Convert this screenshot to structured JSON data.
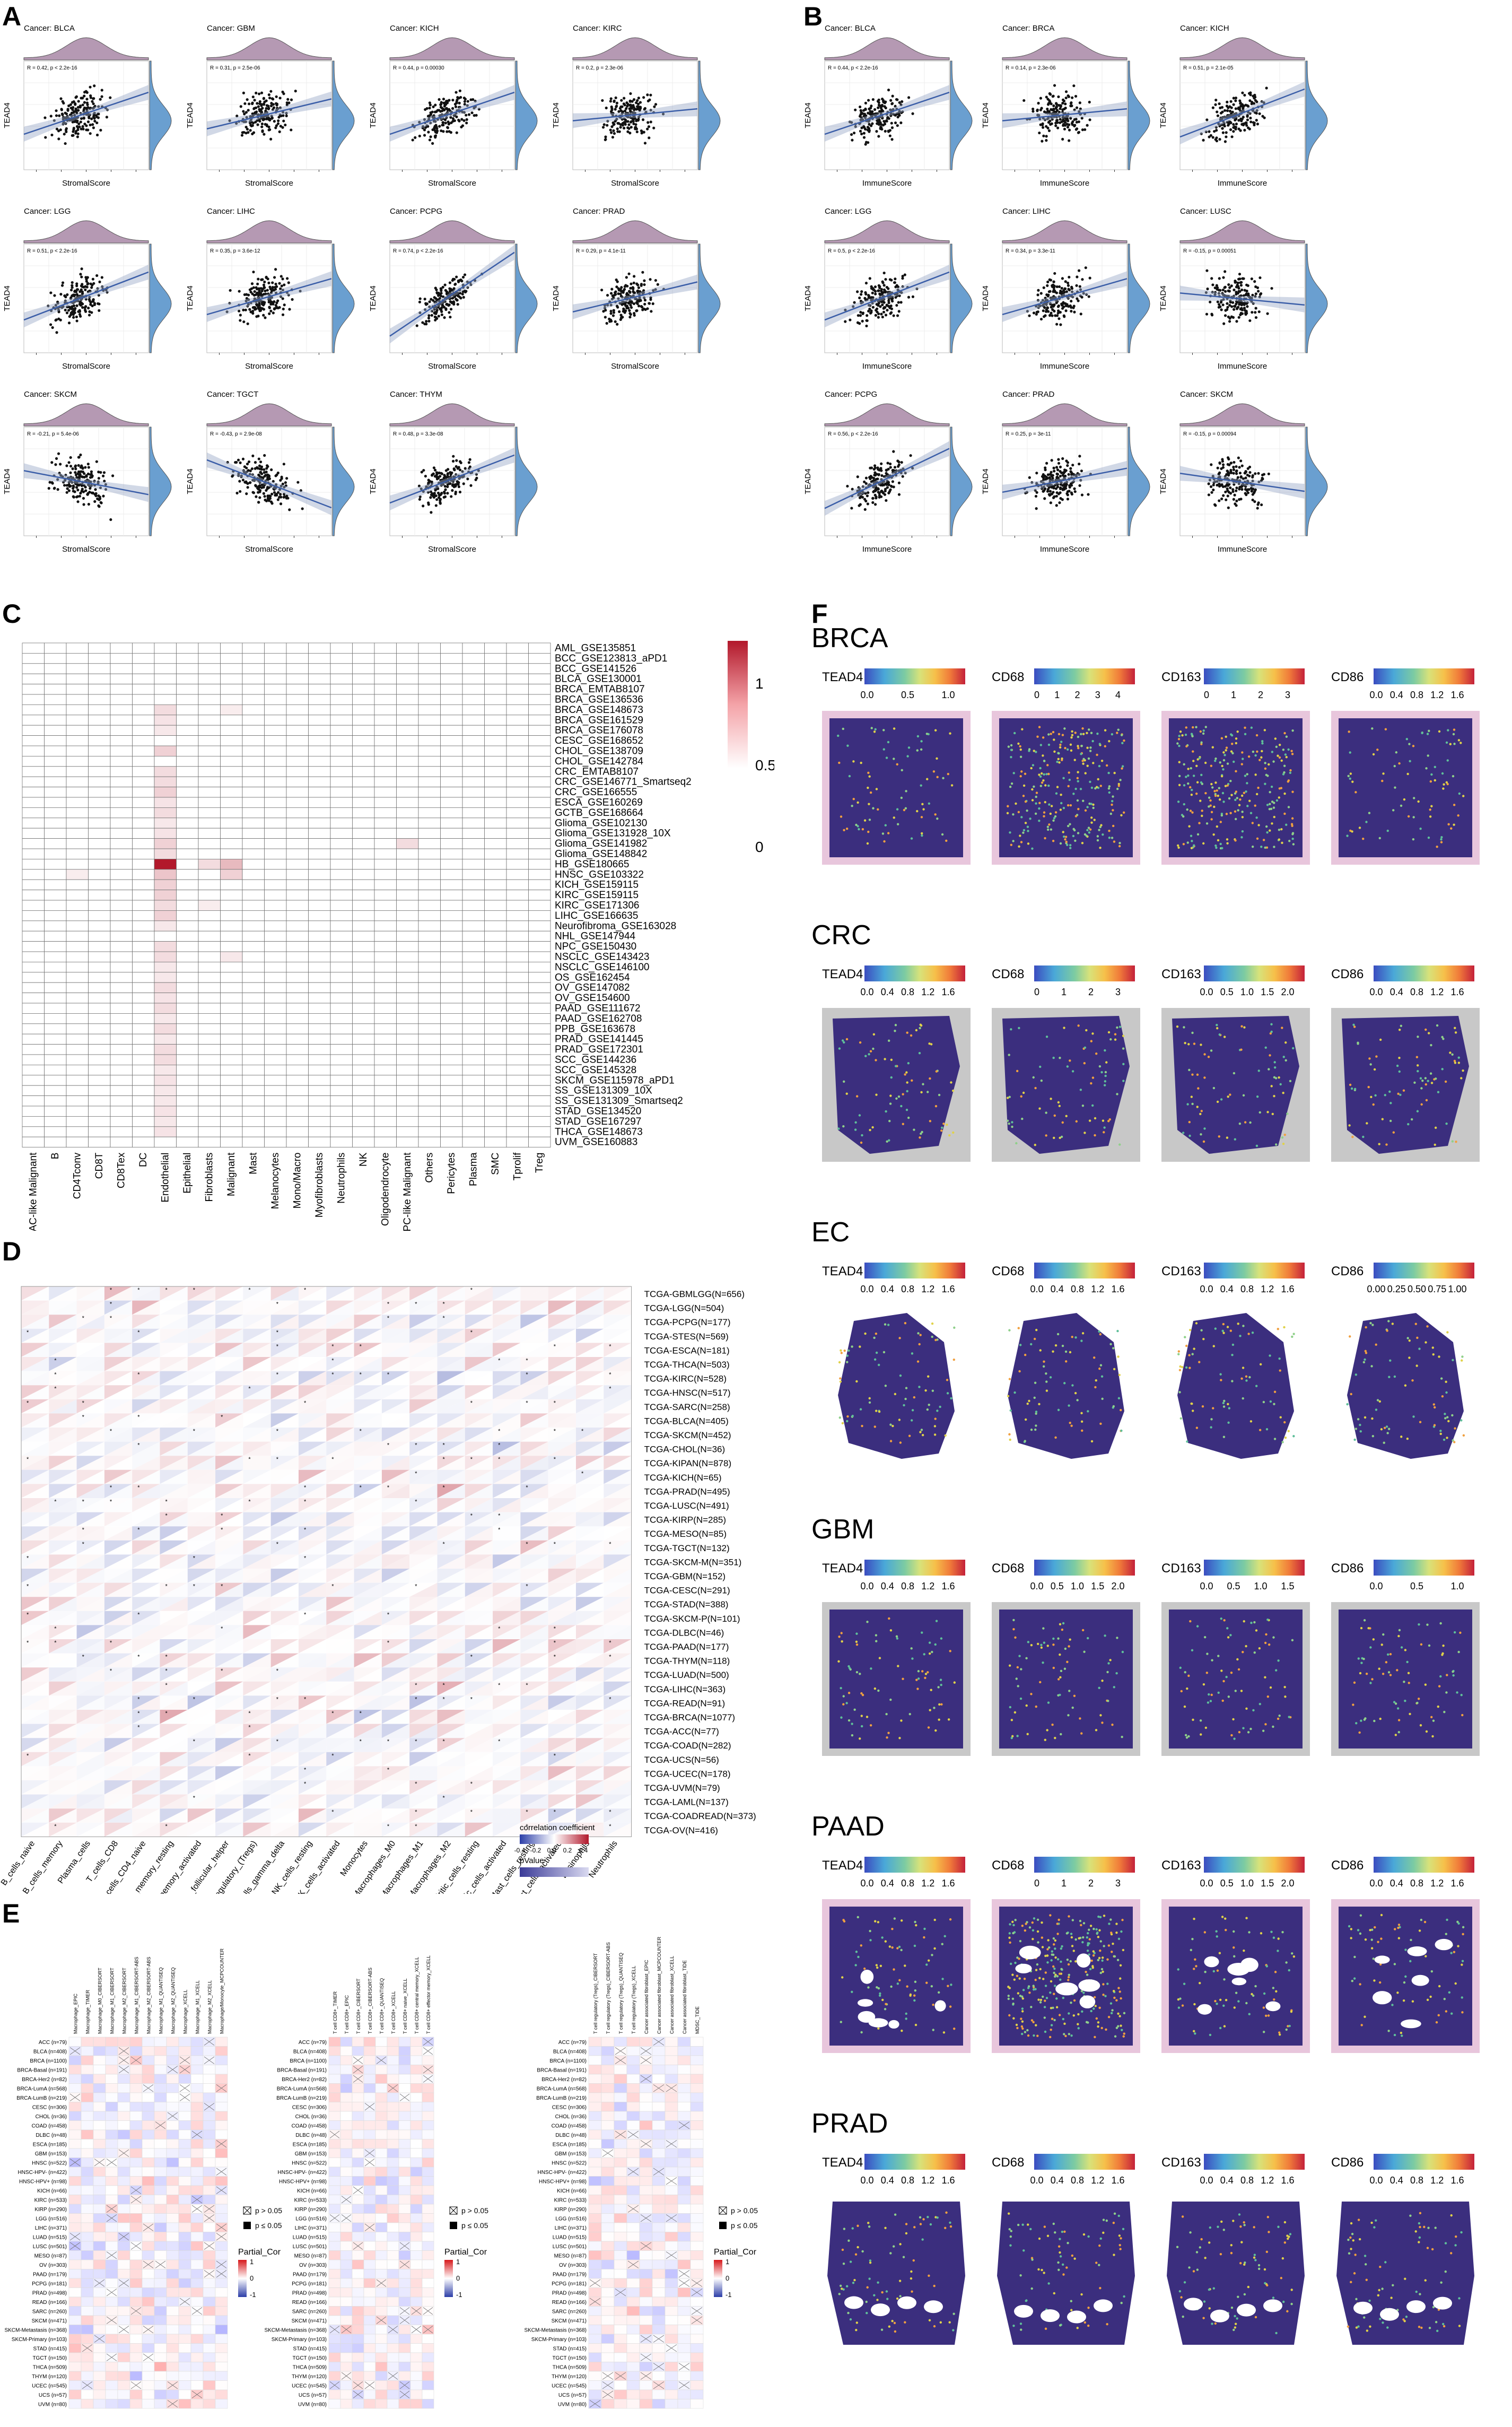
{
  "panels": {
    "A": {
      "letter": "A",
      "xlabel": "StromalScore",
      "ylabel": "TEAD4",
      "plots": [
        {
          "cancer": "Cancer: BLCA",
          "stat": "R = 0.42, p < 2.2e-16",
          "slope": 0.35
        },
        {
          "cancer": "Cancer: GBM",
          "stat": "R = 0.31, p = 2.5e-06",
          "slope": 0.25
        },
        {
          "cancer": "Cancer: KICH",
          "stat": "R = 0.44, p = 0.00030",
          "slope": 0.35
        },
        {
          "cancer": "Cancer: KIRC",
          "stat": "R = 0.2, p = 2.3e-06",
          "slope": 0.1
        },
        {
          "cancer": "Cancer: LGG",
          "stat": "R = 0.51, p < 2.2e-16",
          "slope": 0.4
        },
        {
          "cancer": "Cancer: LIHC",
          "stat": "R = 0.35, p = 3.6e-12",
          "slope": 0.3
        },
        {
          "cancer": "Cancer: PCPG",
          "stat": "R = 0.74, p < 2.2e-16",
          "slope": 0.7
        },
        {
          "cancer": "Cancer: PRAD",
          "stat": "R = 0.29, p = 4.1e-11",
          "slope": 0.25
        },
        {
          "cancer": "Cancer: SKCM",
          "stat": "R = -0.21, p = 5.4e-06",
          "slope": -0.2
        },
        {
          "cancer": "Cancer: TGCT",
          "stat": "R = -0.43, p = 2.9e-08",
          "slope": -0.4
        },
        {
          "cancer": "Cancer: THYM",
          "stat": "R = 0.48, p = 3.3e-08",
          "slope": 0.4
        }
      ]
    },
    "B": {
      "letter": "B",
      "xlabel": "ImmuneScore",
      "ylabel": "TEAD4",
      "plots": [
        {
          "cancer": "Cancer: BLCA",
          "stat": "R = 0.44, p < 2.2e-16",
          "slope": 0.35
        },
        {
          "cancer": "Cancer: BRCA",
          "stat": "R = 0.14, p = 2.3e-06",
          "slope": 0.1
        },
        {
          "cancer": "Cancer: KICH",
          "stat": "R = 0.51, p = 2.1e-05",
          "slope": 0.4
        },
        {
          "cancer": "Cancer: LGG",
          "stat": "R = 0.5, p < 2.2e-16",
          "slope": 0.4
        },
        {
          "cancer": "Cancer: LIHC",
          "stat": "R = 0.34, p = 3.3e-11",
          "slope": 0.3
        },
        {
          "cancer": "Cancer: LUSC",
          "stat": "R = -0.15, p = 0.00051",
          "slope": -0.1
        },
        {
          "cancer": "Cancer: PCPG",
          "stat": "R = 0.56, p < 2.2e-16",
          "slope": 0.5
        },
        {
          "cancer": "Cancer: PRAD",
          "stat": "R = 0.25, p = 3e-11",
          "slope": 0.2
        },
        {
          "cancer": "Cancer: SKCM",
          "stat": "R = -0.15, p = 0.00094",
          "slope": -0.15
        }
      ]
    },
    "C": {
      "letter": "C",
      "datasets": [
        "AML_GSE135851",
        "BCC_GSE123813_aPD1",
        "BCC_GSE141526",
        "BLCA_GSE130001",
        "BRCA_EMTAB8107",
        "BRCA_GSE136536",
        "BRCA_GSE148673",
        "BRCA_GSE161529",
        "BRCA_GSE176078",
        "CESC_GSE168652",
        "CHOL_GSE138709",
        "CHOL_GSE142784",
        "CRC_EMTAB8107",
        "CRC_GSE146771_Smartseq2",
        "CRC_GSE166555",
        "ESCA_GSE160269",
        "GCTB_GSE168664",
        "Glioma_GSE102130",
        "Glioma_GSE131928_10X",
        "Glioma_GSE141982",
        "Glioma_GSE148842",
        "HB_GSE180665",
        "HNSC_GSE103322",
        "KICH_GSE159115",
        "KIRC_GSE159115",
        "KIRC_GSE171306",
        "LIHC_GSE166635",
        "Neurofibroma_GSE163028",
        "NHL_GSE147944",
        "NPC_GSE150430",
        "NSCLC_GSE143423",
        "NSCLC_GSE146100",
        "OS_GSE162454",
        "OV_GSE147082",
        "OV_GSE154600",
        "PAAD_GSE111672",
        "PAAD_GSE162708",
        "PPB_GSE163678",
        "PRAD_GSE141445",
        "PRAD_GSE172301",
        "SCC_GSE144236",
        "SCC_GSE145328",
        "SKCM_GSE115978_aPD1",
        "SS_GSE131309_10X",
        "SS_GSE131309_Smartseq2",
        "STAD_GSE134520",
        "STAD_GSE167297",
        "THCA_GSE148673",
        "UVM_GSE160883"
      ],
      "celltypes": [
        "AC-like Malignant",
        "B",
        "CD4Tconv",
        "CD8T",
        "CD8Tex",
        "DC",
        "Endothelial",
        "Epithelial",
        "Fibroblasts",
        "Malignant",
        "Mast",
        "Melanocytes",
        "Mono/Macro",
        "Myofibroblasts",
        "Neutrophils",
        "NK",
        "Oligodendrocyte",
        "OPC-like Malignant",
        "Others",
        "Pericytes",
        "Plasma",
        "SMC",
        "Tprolif",
        "Treg"
      ],
      "legend_ticks": [
        "1",
        "0.5",
        "0"
      ],
      "high_cells": [
        [
          21,
          6,
          1.0
        ],
        [
          21,
          9,
          0.3
        ],
        [
          22,
          6,
          0.25
        ],
        [
          6,
          6,
          0.15
        ],
        [
          7,
          6,
          0.12
        ],
        [
          8,
          6,
          0.1
        ],
        [
          10,
          6,
          0.2
        ],
        [
          12,
          6,
          0.15
        ],
        [
          13,
          6,
          0.15
        ],
        [
          14,
          6,
          0.2
        ],
        [
          15,
          6,
          0.12
        ],
        [
          16,
          6,
          0.15
        ],
        [
          17,
          6,
          0.1
        ],
        [
          18,
          6,
          0.12
        ],
        [
          19,
          6,
          0.2
        ],
        [
          20,
          6,
          0.15
        ],
        [
          23,
          6,
          0.2
        ],
        [
          24,
          6,
          0.2
        ],
        [
          25,
          6,
          0.15
        ],
        [
          26,
          6,
          0.2
        ],
        [
          27,
          6,
          0.1
        ],
        [
          29,
          6,
          0.15
        ],
        [
          30,
          6,
          0.15
        ],
        [
          31,
          6,
          0.1
        ],
        [
          32,
          6,
          0.1
        ],
        [
          33,
          6,
          0.15
        ],
        [
          34,
          6,
          0.12
        ],
        [
          35,
          6,
          0.15
        ],
        [
          36,
          6,
          0.1
        ],
        [
          37,
          6,
          0.15
        ],
        [
          38,
          6,
          0.1
        ],
        [
          39,
          6,
          0.15
        ],
        [
          40,
          6,
          0.15
        ],
        [
          41,
          6,
          0.1
        ],
        [
          42,
          6,
          0.12
        ],
        [
          43,
          6,
          0.1
        ],
        [
          44,
          6,
          0.1
        ],
        [
          45,
          6,
          0.12
        ],
        [
          46,
          6,
          0.1
        ],
        [
          47,
          6,
          0.12
        ],
        [
          21,
          8,
          0.15
        ],
        [
          22,
          9,
          0.2
        ],
        [
          19,
          17,
          0.15
        ],
        [
          22,
          2,
          0.08
        ],
        [
          25,
          8,
          0.08
        ],
        [
          6,
          9,
          0.08
        ],
        [
          30,
          9,
          0.1
        ]
      ]
    },
    "D": {
      "letter": "D",
      "rows": [
        "TCGA-GBMLGG(N=656)",
        "TCGA-LGG(N=504)",
        "TCGA-PCPG(N=177)",
        "TCGA-STES(N=569)",
        "TCGA-ESCA(N=181)",
        "TCGA-THCA(N=503)",
        "TCGA-KIRC(N=528)",
        "TCGA-HNSC(N=517)",
        "TCGA-SARC(N=258)",
        "TCGA-BLCA(N=405)",
        "TCGA-SKCM(N=452)",
        "TCGA-CHOL(N=36)",
        "TCGA-KIPAN(N=878)",
        "TCGA-KICH(N=65)",
        "TCGA-PRAD(N=495)",
        "TCGA-LUSC(N=491)",
        "TCGA-KIRP(N=285)",
        "TCGA-MESO(N=85)",
        "TCGA-TGCT(N=132)",
        "TCGA-SKCM-M(N=351)",
        "TCGA-GBM(N=152)",
        "TCGA-CESC(N=291)",
        "TCGA-STAD(N=388)",
        "TCGA-SKCM-P(N=101)",
        "TCGA-DLBC(N=46)",
        "TCGA-PAAD(N=177)",
        "TCGA-THYM(N=118)",
        "TCGA-LUAD(N=500)",
        "TCGA-LIHC(N=363)",
        "TCGA-READ(N=91)",
        "TCGA-BRCA(N=1077)",
        "TCGA-ACC(N=77)",
        "TCGA-COAD(N=282)",
        "TCGA-UCS(N=56)",
        "TCGA-UCEC(N=178)",
        "TCGA-UVM(N=79)",
        "TCGA-LAML(N=137)",
        "TCGA-COADREAD(N=373)",
        "TCGA-OV(N=416)"
      ],
      "cols": [
        "B_cells_naive",
        "B_cells_memory",
        "Plasma_cells",
        "T_cells_CD8",
        "T_cells_CD4_naive",
        "T_cells_CD4_memory_resting",
        "T_cells_CD4_memory_activated",
        "T_cells_follicular_helper",
        "T_cells_regulatory_(Tregs)",
        "T_cells_gamma_delta",
        "NK_cells_resting",
        "NK_cells_activated",
        "Monocytes",
        "Macrophages_M0",
        "Macrophages_M1",
        "Macrophages_M2",
        "Dendritic_cells_resting",
        "Dendritic_cells_activated",
        "Mast_cells_resting",
        "Mast_cells_activated",
        "Eosinophils",
        "Neutrophils"
      ],
      "legend_title": "correlation coefficient",
      "legend_ticks": [
        "-0.4",
        "-0.2",
        "0.0",
        "0.2",
        "0.4"
      ],
      "legend_p": "pValue"
    },
    "E": {
      "letter": "E",
      "rows": [
        "ACC (n=79)",
        "BLCA (n=408)",
        "BRCA (n=1100)",
        "BRCA-Basal (n=191)",
        "BRCA-Her2 (n=82)",
        "BRCA-LumA (n=568)",
        "BRCA-LumB (n=219)",
        "CESC (n=306)",
        "CHOL (n=36)",
        "COAD (n=458)",
        "DLBC (n=48)",
        "ESCA (n=185)",
        "GBM (n=153)",
        "HNSC (n=522)",
        "HNSC-HPV- (n=422)",
        "HNSC-HPV+ (n=98)",
        "KICH (n=66)",
        "KIRC (n=533)",
        "KIRP (n=290)",
        "LGG (n=516)",
        "LIHC (n=371)",
        "LUAD (n=515)",
        "LUSC (n=501)",
        "MESO (n=87)",
        "OV (n=303)",
        "PAAD (n=179)",
        "PCPG (n=181)",
        "PRAD (n=498)",
        "READ (n=166)",
        "SARC (n=260)",
        "SKCM (n=471)",
        "SKCM-Metastasis (n=368)",
        "SKCM-Primary (n=103)",
        "STAD (n=415)",
        "TGCT (n=150)",
        "THCA (n=509)",
        "THYM (n=120)",
        "UCEC (n=545)",
        "UCS (n=57)",
        "UVM (n=80)"
      ],
      "cols1": [
        "Macrophage_EPIC",
        "Macrophage_TIMER",
        "Macrophage_M0_CIBERSORT",
        "Macrophage_M1_CIBERSORT",
        "Macrophage_M2_CIBERSORT",
        "Macrophage_M1_CIBERSORT-ABS",
        "Macrophage_M2_CIBERSORT-ABS",
        "Macrophage_M1_QUANTISEQ",
        "Macrophage_M2_QUANTISEQ",
        "Macrophage_XCELL",
        "Macrophage_M1_XCELL",
        "Macrophage_M2_XCELL",
        "Macrophage/Monocyte_MCPCOUNTER"
      ],
      "cols2": [
        "T cell CD8+_TIMER",
        "T cell CD8+_EPIC",
        "T cell CD8+_CIBERSORT",
        "T cell CD8+_CIBERSORT-ABS",
        "T cell CD8+_QUANTISEQ",
        "T cell CD8+_XCELL",
        "T cell CD8+ naive_XCELL",
        "T cell CD8+ central memory_XCELL",
        "T cell CD8+ effector memory_XCELL"
      ],
      "cols3": [
        "T cell regulatory (Tregs)_CIBERSORT",
        "T cell regulatory (Tregs)_CIBERSORT-ABS",
        "T cell regulatory (Tregs)_QUANTISEQ",
        "T cell regulatory (Tregs)_XCELL",
        "Cancer associated fibroblast_EPIC",
        "Cancer associated fibroblast_MCPCOUNTER",
        "Cancer associated fibroblast_XCELL",
        "Cancer associated fibroblast_TIDE",
        "MDSC_TIDE"
      ],
      "legend_p1": "p > 0.05",
      "legend_p2": "p ≤ 0.05",
      "legend_title": "Partial_Cor",
      "legend_ticks": [
        "1",
        "0",
        "-1"
      ]
    },
    "F": {
      "letter": "F",
      "genes": [
        "TEAD4",
        "CD68",
        "CD163",
        "CD86"
      ],
      "sections": [
        {
          "name": "BRCA",
          "ticks": [
            [
              "0.0",
              "0.5",
              "1.0"
            ],
            [
              "0",
              "1",
              "2",
              "3",
              "4"
            ],
            [
              "0",
              "1",
              "2",
              "3"
            ],
            [
              "0.0",
              "0.4",
              "0.8",
              "1.2",
              "1.6"
            ]
          ],
          "shape": "square",
          "bg": "pink"
        },
        {
          "name": "CRC",
          "ticks": [
            [
              "0.0",
              "0.4",
              "0.8",
              "1.2",
              "1.6"
            ],
            [
              "0",
              "1",
              "2",
              "3"
            ],
            [
              "0.0",
              "0.5",
              "1.0",
              "1.5",
              "2.0"
            ],
            [
              "0.0",
              "0.4",
              "0.8",
              "1.2",
              "1.6"
            ]
          ],
          "shape": "crc",
          "bg": "gray"
        },
        {
          "name": "EC",
          "ticks": [
            [
              "0.0",
              "0.4",
              "0.8",
              "1.2",
              "1.6"
            ],
            [
              "0.0",
              "0.4",
              "0.8",
              "1.2",
              "1.6"
            ],
            [
              "0.0",
              "0.4",
              "0.8",
              "1.2",
              "1.6"
            ],
            [
              "0.00",
              "0.25",
              "0.50",
              "0.75",
              "1.00"
            ]
          ],
          "shape": "ec",
          "bg": "white"
        },
        {
          "name": "GBM",
          "ticks": [
            [
              "0.0",
              "0.4",
              "0.8",
              "1.2",
              "1.6"
            ],
            [
              "0.0",
              "0.5",
              "1.0",
              "1.5",
              "2.0"
            ],
            [
              "0.0",
              "0.5",
              "1.0",
              "1.5"
            ],
            [
              "0.0",
              "0.5",
              "1.0"
            ]
          ],
          "shape": "square",
          "bg": "gray"
        },
        {
          "name": "PAAD",
          "ticks": [
            [
              "0.0",
              "0.4",
              "0.8",
              "1.2",
              "1.6"
            ],
            [
              "0",
              "1",
              "2",
              "3"
            ],
            [
              "0.0",
              "0.5",
              "1.0",
              "1.5",
              "2.0"
            ],
            [
              "0.0",
              "0.4",
              "0.8",
              "1.2",
              "1.6"
            ]
          ],
          "shape": "square",
          "bg": "pinkholes"
        },
        {
          "name": "PRAD",
          "ticks": [
            [
              "0.0",
              "0.4",
              "0.8",
              "1.2",
              "1.6"
            ],
            [
              "0.0",
              "0.4",
              "0.8",
              "1.2",
              "1.6"
            ],
            [
              "0.0",
              "0.4",
              "0.8",
              "1.2",
              "1.6"
            ],
            [
              "0.0",
              "0.4",
              "0.8",
              "1.2",
              "1.6"
            ]
          ],
          "shape": "prad",
          "bg": "white"
        }
      ]
    }
  },
  "colors": {
    "density_top": "#b599b3",
    "density_right": "#6a9fd0",
    "scatter": "#111111",
    "fit_line": "#3b5ea8",
    "heat_red": "#b2182b",
    "heat_blue": "#2c3ea8",
    "spatial_low": "#3b2e7e"
  }
}
